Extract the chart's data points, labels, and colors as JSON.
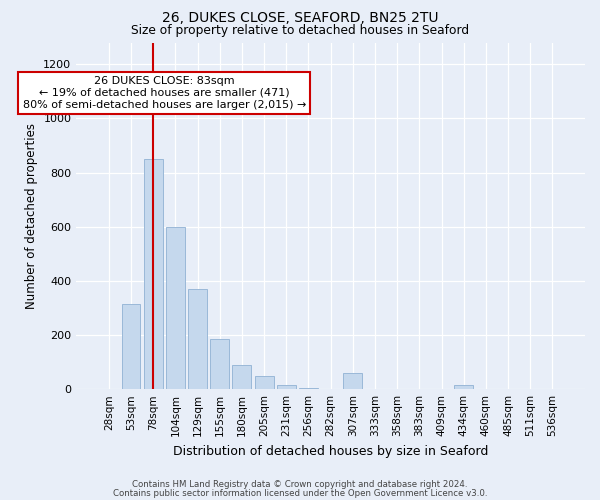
{
  "title1": "26, DUKES CLOSE, SEAFORD, BN25 2TU",
  "title2": "Size of property relative to detached houses in Seaford",
  "xlabel": "Distribution of detached houses by size in Seaford",
  "ylabel": "Number of detached properties",
  "categories": [
    "28sqm",
    "53sqm",
    "78sqm",
    "104sqm",
    "129sqm",
    "155sqm",
    "180sqm",
    "205sqm",
    "231sqm",
    "256sqm",
    "282sqm",
    "307sqm",
    "333sqm",
    "358sqm",
    "383sqm",
    "409sqm",
    "434sqm",
    "460sqm",
    "485sqm",
    "511sqm",
    "536sqm"
  ],
  "values": [
    0,
    315,
    850,
    600,
    370,
    185,
    90,
    50,
    15,
    5,
    0,
    60,
    0,
    0,
    0,
    0,
    15,
    0,
    0,
    0,
    0
  ],
  "bar_color": "#c5d8ed",
  "bar_edge_color": "#9ab8d8",
  "red_line_index": 2,
  "red_line_color": "#cc0000",
  "annotation_title": "26 DUKES CLOSE: 83sqm",
  "annotation_line1": "← 19% of detached houses are smaller (471)",
  "annotation_line2": "80% of semi-detached houses are larger (2,015) →",
  "annotation_box_color": "#ffffff",
  "annotation_box_edge": "#cc0000",
  "ylim": [
    0,
    1280
  ],
  "yticks": [
    0,
    200,
    400,
    600,
    800,
    1000,
    1200
  ],
  "fig_background": "#e8eef8",
  "plot_background": "#e8eef8",
  "footer1": "Contains HM Land Registry data © Crown copyright and database right 2024.",
  "footer2": "Contains public sector information licensed under the Open Government Licence v3.0."
}
